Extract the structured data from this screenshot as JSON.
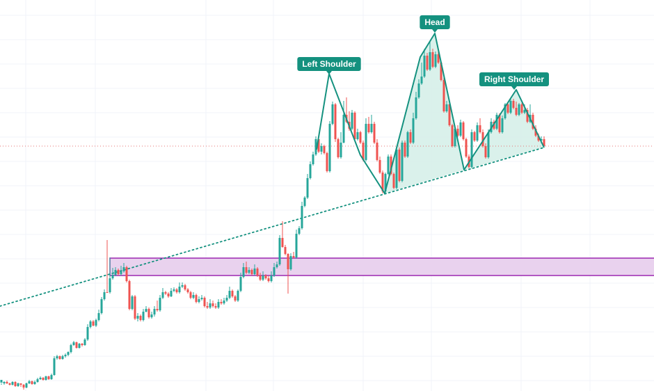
{
  "chart_data": {
    "type": "candlestick",
    "title": "",
    "xlabel": "",
    "ylabel": "",
    "grid": true,
    "colors": {
      "up": "#26a69a",
      "down": "#ef5350",
      "pattern": "#14917f",
      "pattern_fill": "#d6efe9",
      "zone_border": "#9c27b0",
      "zone_fill": "#e9d2ee",
      "price_line": "#e57373",
      "grid": "#f0f3fa",
      "label_bg": "#14917f"
    },
    "candles": [
      [
        2,
        550,
        546,
        553,
        551
      ],
      [
        6,
        551,
        549,
        553,
        548
      ],
      [
        10,
        549,
        551,
        552,
        547
      ],
      [
        14,
        551,
        553,
        554,
        550
      ],
      [
        18,
        553,
        549,
        554,
        548
      ],
      [
        22,
        549,
        555,
        556,
        548
      ],
      [
        26,
        555,
        551,
        556,
        550
      ],
      [
        30,
        551,
        553,
        556,
        551
      ],
      [
        34,
        553,
        557,
        560,
        552
      ],
      [
        38,
        557,
        551,
        558,
        550
      ],
      [
        42,
        551,
        548,
        552,
        546
      ],
      [
        46,
        548,
        552,
        553,
        547
      ],
      [
        50,
        552,
        549,
        553,
        547
      ],
      [
        54,
        549,
        545,
        550,
        543
      ],
      [
        58,
        545,
        543,
        546,
        541
      ],
      [
        62,
        543,
        546,
        547,
        542
      ],
      [
        66,
        546,
        541,
        547,
        540
      ],
      [
        70,
        541,
        545,
        546,
        540
      ],
      [
        74,
        545,
        539,
        546,
        537
      ],
      [
        78,
        539,
        515,
        540,
        512
      ],
      [
        82,
        515,
        512,
        517,
        510
      ],
      [
        86,
        512,
        516,
        517,
        511
      ],
      [
        90,
        516,
        512,
        517,
        510
      ],
      [
        94,
        512,
        510,
        514,
        508
      ],
      [
        98,
        510,
        506,
        512,
        505
      ],
      [
        102,
        506,
        496,
        508,
        494
      ],
      [
        106,
        496,
        492,
        497,
        490
      ],
      [
        110,
        492,
        500,
        501,
        491
      ],
      [
        114,
        500,
        494,
        501,
        493
      ],
      [
        118,
        494,
        496,
        498,
        493
      ],
      [
        122,
        496,
        488,
        497,
        486
      ],
      [
        126,
        488,
        470,
        490,
        466
      ],
      [
        130,
        470,
        462,
        472,
        460
      ],
      [
        134,
        462,
        468,
        469,
        460
      ],
      [
        138,
        468,
        460,
        470,
        458
      ],
      [
        142,
        460,
        450,
        462,
        445
      ],
      [
        146,
        450,
        430,
        452,
        427
      ],
      [
        150,
        430,
        420,
        432,
        416
      ],
      [
        154,
        420,
        420,
        421,
        345
      ],
      [
        158,
        420,
        400,
        422,
        370
      ],
      [
        162,
        400,
        395,
        402,
        385
      ],
      [
        166,
        395,
        388,
        397,
        384
      ],
      [
        170,
        388,
        394,
        396,
        386
      ],
      [
        174,
        394,
        390,
        396,
        382
      ],
      [
        178,
        390,
        384,
        392,
        378
      ],
      [
        182,
        384,
        404,
        406,
        382
      ],
      [
        186,
        404,
        444,
        446,
        402
      ],
      [
        190,
        444,
        426,
        446,
        424
      ],
      [
        194,
        426,
        458,
        460,
        424
      ],
      [
        198,
        458,
        454,
        462,
        450
      ],
      [
        202,
        454,
        460,
        462,
        452
      ],
      [
        206,
        460,
        448,
        462,
        444
      ],
      [
        210,
        448,
        444,
        449,
        440
      ],
      [
        214,
        444,
        456,
        458,
        442
      ],
      [
        218,
        456,
        452,
        458,
        448
      ],
      [
        222,
        452,
        444,
        455,
        440
      ],
      [
        226,
        444,
        446,
        448,
        432
      ],
      [
        230,
        446,
        428,
        448,
        424
      ],
      [
        234,
        428,
        420,
        430,
        414
      ],
      [
        238,
        420,
        422,
        424,
        418
      ],
      [
        242,
        422,
        426,
        428,
        420
      ],
      [
        246,
        426,
        418,
        427,
        414
      ],
      [
        250,
        418,
        416,
        420,
        413
      ],
      [
        254,
        416,
        420,
        422,
        414
      ],
      [
        258,
        420,
        412,
        422,
        406
      ],
      [
        262,
        412,
        410,
        414,
        406
      ],
      [
        266,
        410,
        416,
        418,
        408
      ],
      [
        270,
        416,
        420,
        422,
        414
      ],
      [
        274,
        420,
        428,
        430,
        418
      ],
      [
        278,
        428,
        424,
        430,
        420
      ],
      [
        282,
        424,
        434,
        436,
        422
      ],
      [
        286,
        434,
        430,
        436,
        426
      ],
      [
        290,
        430,
        428,
        432,
        424
      ],
      [
        294,
        428,
        440,
        442,
        426
      ],
      [
        298,
        440,
        442,
        444,
        434
      ],
      [
        302,
        442,
        436,
        444,
        430
      ],
      [
        306,
        436,
        440,
        442,
        432
      ],
      [
        310,
        440,
        442,
        444,
        436
      ],
      [
        314,
        442,
        434,
        444,
        430
      ],
      [
        318,
        434,
        436,
        438,
        430
      ],
      [
        322,
        436,
        432,
        438,
        428
      ],
      [
        326,
        432,
        428,
        434,
        424
      ],
      [
        330,
        428,
        418,
        430,
        412
      ],
      [
        334,
        418,
        426,
        428,
        416
      ],
      [
        338,
        426,
        432,
        434,
        424
      ],
      [
        342,
        432,
        418,
        434,
        416
      ],
      [
        346,
        418,
        398,
        420,
        392
      ],
      [
        350,
        398,
        384,
        400,
        378
      ],
      [
        354,
        384,
        392,
        394,
        376
      ],
      [
        358,
        392,
        388,
        394,
        384
      ],
      [
        362,
        388,
        394,
        396,
        386
      ],
      [
        366,
        394,
        386,
        396,
        380
      ],
      [
        370,
        386,
        396,
        398,
        384
      ],
      [
        374,
        396,
        402,
        404,
        392
      ],
      [
        378,
        402,
        396,
        404,
        390
      ],
      [
        382,
        396,
        400,
        402,
        394
      ],
      [
        386,
        400,
        404,
        406,
        396
      ],
      [
        390,
        404,
        396,
        406,
        390
      ],
      [
        394,
        396,
        384,
        398,
        378
      ],
      [
        398,
        384,
        380,
        386,
        376
      ],
      [
        402,
        380,
        342,
        382,
        338
      ],
      [
        406,
        342,
        355,
        356,
        318
      ],
      [
        410,
        355,
        365,
        367,
        352
      ],
      [
        414,
        365,
        387,
        422,
        364
      ],
      [
        418,
        387,
        368,
        389,
        364
      ],
      [
        422,
        368,
        370,
        372,
        362
      ],
      [
        426,
        370,
        336,
        372,
        330
      ],
      [
        430,
        336,
        328,
        338,
        325
      ],
      [
        434,
        328,
        296,
        330,
        290
      ],
      [
        438,
        296,
        284,
        298,
        282
      ],
      [
        442,
        284,
        256,
        286,
        250
      ],
      [
        446,
        256,
        236,
        258,
        232
      ],
      [
        450,
        236,
        222,
        238,
        218
      ],
      [
        454,
        222,
        200,
        224,
        196
      ],
      [
        458,
        200,
        218,
        220,
        198
      ],
      [
        462,
        218,
        210,
        222,
        206
      ],
      [
        466,
        210,
        220,
        222,
        208
      ],
      [
        470,
        220,
        246,
        248,
        218
      ],
      [
        474,
        246,
        178,
        248,
        174
      ],
      [
        478,
        178,
        150,
        180,
        146
      ],
      [
        482,
        150,
        200,
        204,
        148
      ],
      [
        486,
        200,
        226,
        228,
        198
      ],
      [
        490,
        226,
        205,
        228,
        190
      ],
      [
        494,
        205,
        165,
        206,
        145
      ],
      [
        498,
        165,
        175,
        177,
        140
      ],
      [
        502,
        175,
        185,
        188,
        160
      ],
      [
        506,
        185,
        162,
        187,
        158
      ],
      [
        510,
        162,
        200,
        202,
        160
      ],
      [
        514,
        200,
        190,
        202,
        185
      ],
      [
        518,
        190,
        205,
        207,
        188
      ],
      [
        522,
        205,
        230,
        232,
        202
      ],
      [
        526,
        230,
        178,
        232,
        170
      ],
      [
        530,
        178,
        190,
        192,
        168
      ],
      [
        534,
        190,
        178,
        192,
        165
      ],
      [
        538,
        178,
        205,
        207,
        175
      ],
      [
        542,
        205,
        230,
        232,
        200
      ],
      [
        546,
        230,
        248,
        250,
        225
      ],
      [
        550,
        248,
        275,
        278,
        245
      ],
      [
        554,
        275,
        250,
        278,
        248
      ],
      [
        558,
        250,
        225,
        252,
        222
      ],
      [
        562,
        225,
        250,
        252,
        222
      ],
      [
        566,
        250,
        270,
        272,
        248
      ],
      [
        570,
        270,
        215,
        272,
        212
      ],
      [
        574,
        215,
        260,
        262,
        212
      ],
      [
        578,
        260,
        205,
        262,
        202
      ],
      [
        582,
        205,
        225,
        227,
        202
      ],
      [
        586,
        225,
        190,
        227,
        188
      ],
      [
        590,
        190,
        205,
        207,
        186
      ],
      [
        594,
        205,
        170,
        207,
        162
      ],
      [
        598,
        170,
        140,
        172,
        132
      ],
      [
        602,
        140,
        120,
        142,
        114
      ],
      [
        606,
        120,
        110,
        122,
        90
      ],
      [
        610,
        110,
        80,
        112,
        70
      ],
      [
        614,
        80,
        100,
        102,
        76
      ],
      [
        618,
        100,
        75,
        102,
        60
      ],
      [
        622,
        75,
        96,
        98,
        70
      ],
      [
        626,
        96,
        78,
        98,
        74
      ],
      [
        630,
        78,
        90,
        92,
        74
      ],
      [
        634,
        90,
        115,
        117,
        88
      ],
      [
        638,
        115,
        160,
        162,
        112
      ],
      [
        642,
        160,
        150,
        162,
        145
      ],
      [
        646,
        150,
        180,
        182,
        148
      ],
      [
        650,
        180,
        210,
        212,
        178
      ],
      [
        654,
        210,
        185,
        212,
        180
      ],
      [
        658,
        185,
        195,
        197,
        180
      ],
      [
        662,
        195,
        176,
        197,
        172
      ],
      [
        666,
        176,
        200,
        202,
        174
      ],
      [
        670,
        200,
        225,
        227,
        198
      ],
      [
        674,
        225,
        240,
        242,
        222
      ],
      [
        678,
        240,
        190,
        242,
        186
      ],
      [
        682,
        190,
        202,
        204,
        188
      ],
      [
        686,
        202,
        180,
        204,
        176
      ],
      [
        690,
        180,
        190,
        192,
        170
      ],
      [
        694,
        190,
        210,
        212,
        186
      ],
      [
        698,
        210,
        226,
        228,
        206
      ],
      [
        702,
        226,
        190,
        228,
        186
      ],
      [
        706,
        190,
        175,
        192,
        170
      ],
      [
        710,
        175,
        185,
        187,
        172
      ],
      [
        714,
        185,
        165,
        187,
        162
      ],
      [
        718,
        165,
        190,
        192,
        163
      ],
      [
        722,
        190,
        170,
        192,
        166
      ],
      [
        726,
        170,
        150,
        172,
        148
      ],
      [
        730,
        150,
        162,
        164,
        148
      ],
      [
        734,
        162,
        145,
        164,
        140
      ],
      [
        738,
        145,
        155,
        157,
        142
      ],
      [
        742,
        155,
        165,
        167,
        146
      ],
      [
        746,
        165,
        150,
        167,
        148
      ],
      [
        750,
        150,
        162,
        164,
        148
      ],
      [
        754,
        162,
        158,
        164,
        150
      ],
      [
        758,
        158,
        175,
        177,
        155
      ],
      [
        762,
        175,
        165,
        177,
        150
      ],
      [
        766,
        165,
        185,
        187,
        162
      ],
      [
        770,
        185,
        195,
        197,
        180
      ],
      [
        774,
        195,
        202,
        204,
        192
      ],
      [
        778,
        202,
        200,
        206,
        196
      ],
      [
        782,
        200,
        210,
        212,
        196
      ]
    ],
    "price_axis": {
      "y_at_price_level": 210
    },
    "support_trendline": {
      "from": [
        0,
        440
      ],
      "to": [
        782,
        212
      ]
    },
    "demand_zone": {
      "from_x": 158,
      "top": 371,
      "bottom": 396
    },
    "pattern_polyline": [
      [
        455,
        215
      ],
      [
        473,
        106
      ],
      [
        518,
        223
      ],
      [
        553,
        278
      ],
      [
        604,
        82
      ],
      [
        625,
        48
      ],
      [
        667,
        244
      ],
      [
        742,
        129
      ],
      [
        782,
        212
      ]
    ],
    "pattern_fill_regions": [
      [
        [
          553,
          278
        ],
        [
          604,
          82
        ],
        [
          625,
          48
        ],
        [
          667,
          244
        ]
      ],
      [
        [
          667,
          244
        ],
        [
          742,
          129
        ],
        [
          782,
          212
        ]
      ]
    ],
    "annotations": [
      {
        "id": "left-shoulder",
        "text": "Left Shoulder",
        "anchor": [
          473,
          92
        ]
      },
      {
        "id": "head",
        "text": "Head",
        "anchor": [
          625,
          32
        ]
      },
      {
        "id": "right-shoulder",
        "text": "Right Shoulder",
        "anchor": [
          739,
          114
        ]
      }
    ]
  }
}
